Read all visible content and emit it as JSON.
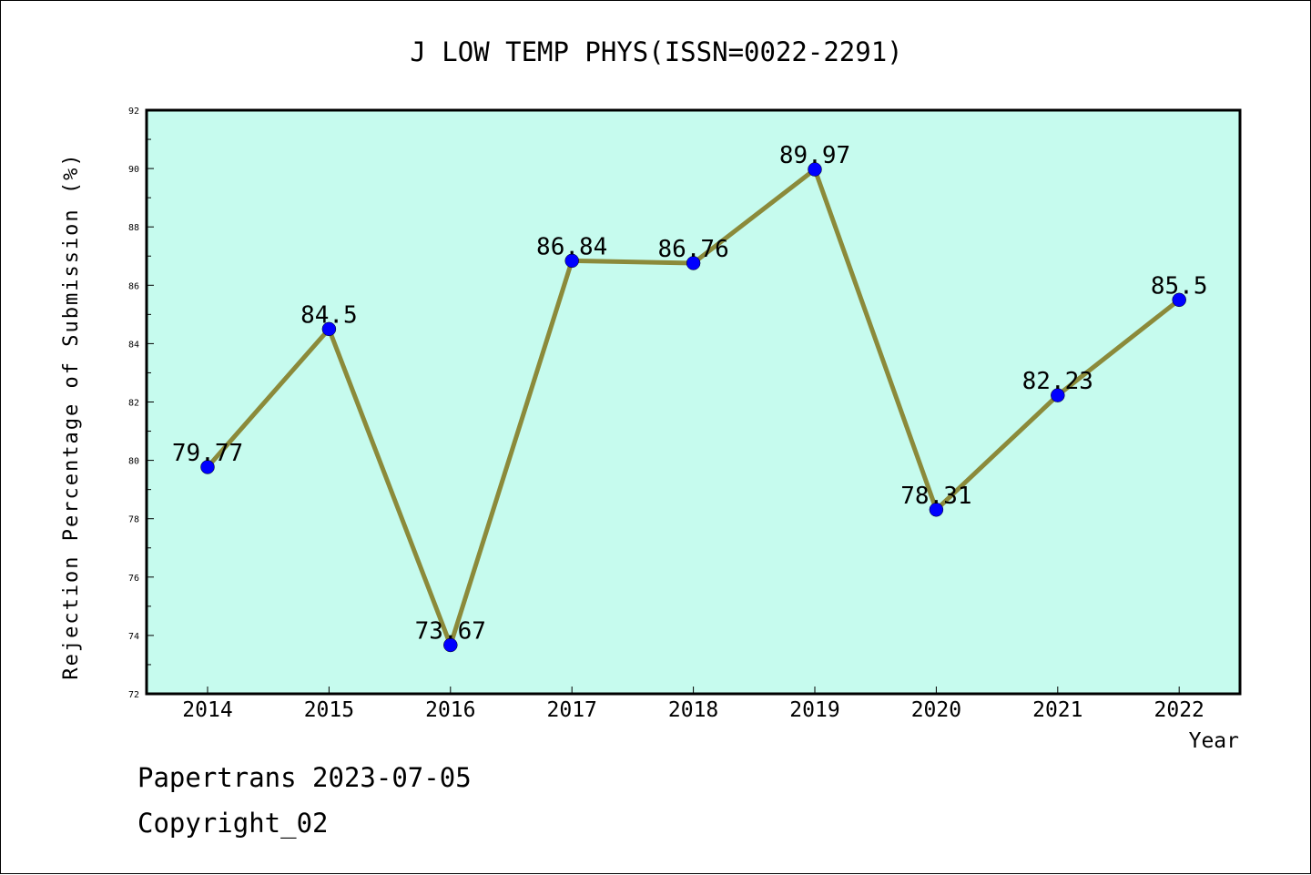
{
  "chart_data": {
    "type": "line",
    "title": "J LOW TEMP PHYS(ISSN=0022-2291)",
    "xlabel": "Year",
    "ylabel": "Rejection Percentage of Submission (%)",
    "x": [
      "2014",
      "2015",
      "2016",
      "2017",
      "2018",
      "2019",
      "2020",
      "2021",
      "2022"
    ],
    "series": [
      {
        "values": [
          79.77,
          84.5,
          73.67,
          86.84,
          86.76,
          89.97,
          78.31,
          82.23,
          85.5
        ],
        "labels": [
          "79.77",
          "84.5",
          "73.67",
          "86.84",
          "86.76",
          "89.97",
          "78.31",
          "82.23",
          "85.5"
        ]
      }
    ],
    "ylim": [
      72,
      92
    ],
    "yticks": [
      "72",
      "74",
      "76",
      "78",
      "80",
      "82",
      "84",
      "86",
      "88",
      "90",
      "92"
    ],
    "grid": false,
    "colors": {
      "plot_background": "#c6fbee",
      "line": "#8b8a3a",
      "marker": "#0000ff"
    }
  },
  "footer": {
    "source": "Papertrans 2023-07-05",
    "copyright": "Copyright_02"
  }
}
